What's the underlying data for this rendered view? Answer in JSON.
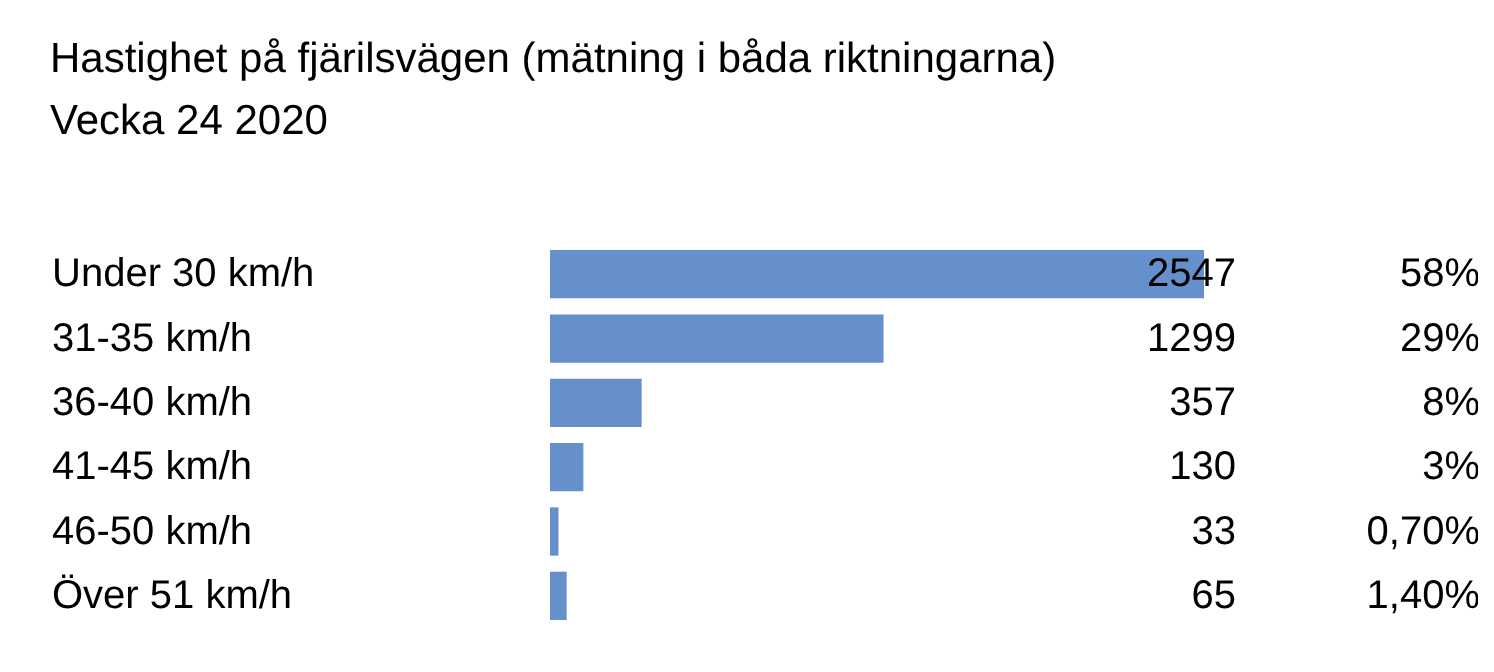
{
  "chart_data": {
    "type": "bar",
    "orientation": "horizontal",
    "title": "Hastighet på fjärilsvägen (mätning i båda riktningarna)",
    "subtitle": "Vecka 24 2020",
    "categories": [
      "Under 30 km/h",
      "31-35 km/h",
      "36-40 km/h",
      "41-45 km/h",
      "46-50 km/h",
      "Över 51 km/h"
    ],
    "values": [
      2547,
      1299,
      357,
      130,
      33,
      65
    ],
    "color": "#6690cc",
    "data_labels": true,
    "annotations": [
      "58%",
      "29%",
      "8%",
      "3%",
      "0,70%",
      "1,40%"
    ]
  }
}
